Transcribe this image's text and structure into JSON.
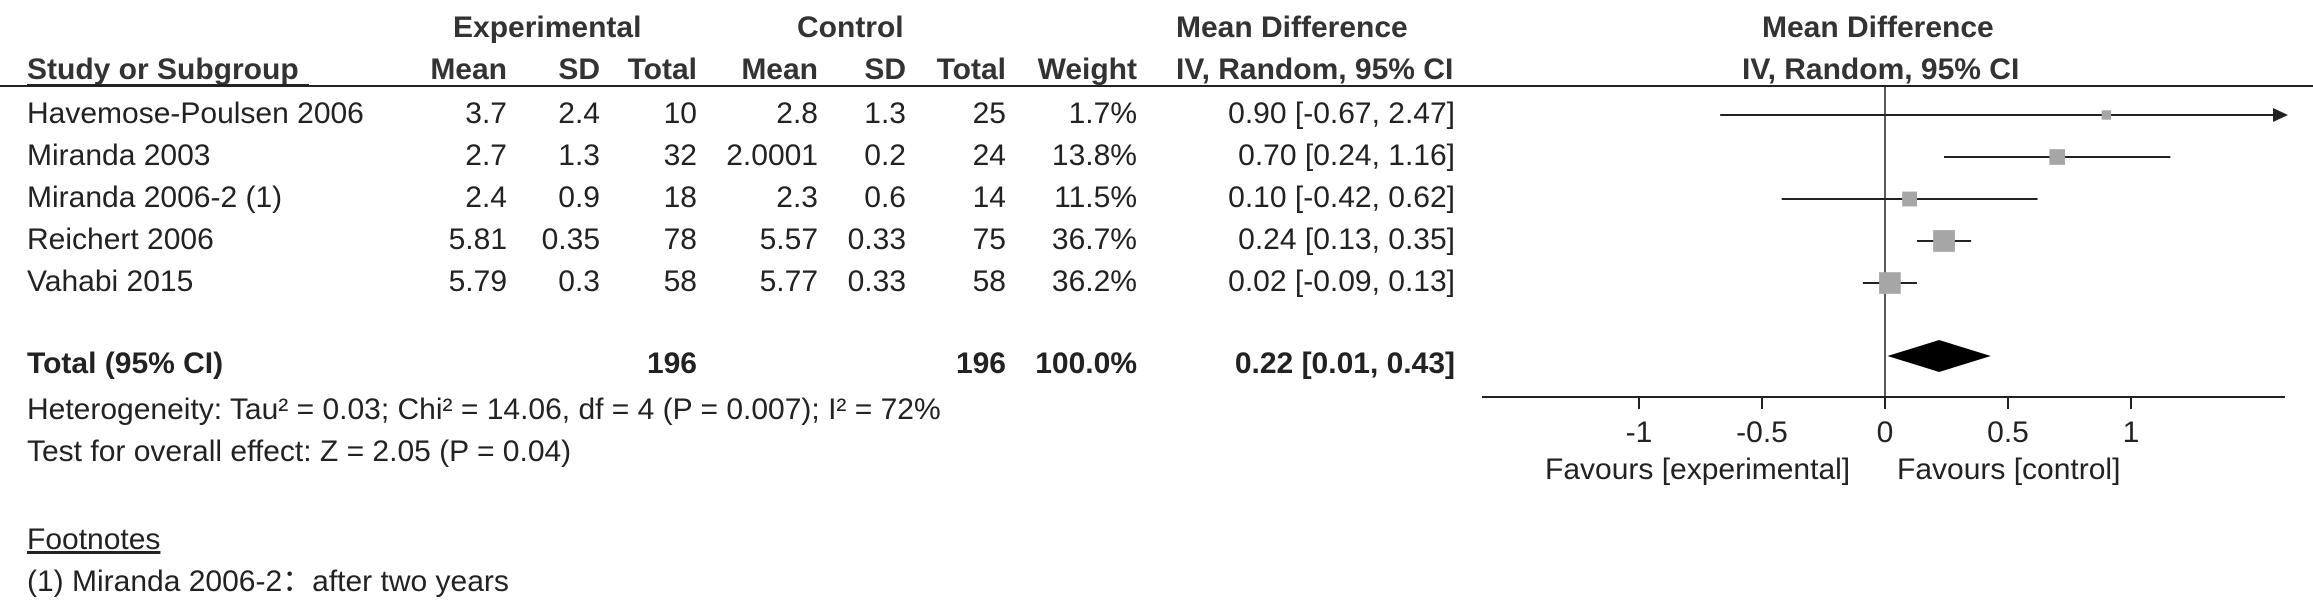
{
  "header": {
    "group_experimental": "Experimental",
    "group_control": "Control",
    "md_title": "Mean Difference",
    "md_subtitle": "IV, Random, 95% CI",
    "plot_title": "Mean Difference",
    "plot_subtitle": "IV, Random, 95% CI",
    "columns": {
      "study": "Study or Subgroup",
      "exp_mean": "Mean",
      "exp_sd": "SD",
      "exp_total": "Total",
      "ctl_mean": "Mean",
      "ctl_sd": "SD",
      "ctl_total": "Total",
      "weight": "Weight"
    }
  },
  "studies": [
    {
      "name": "Havemose-Poulsen 2006",
      "exp_mean": "3.7",
      "exp_sd": "2.4",
      "exp_total": "10",
      "ctl_mean": "2.8",
      "ctl_sd": "1.3",
      "ctl_total": "25",
      "weight": "1.7%",
      "ci_text": "0.90 [-0.67, 2.47]"
    },
    {
      "name": "Miranda 2003",
      "exp_mean": "2.7",
      "exp_sd": "1.3",
      "exp_total": "32",
      "ctl_mean": "2.0001",
      "ctl_sd": "0.2",
      "ctl_total": "24",
      "weight": "13.8%",
      "ci_text": "0.70 [0.24, 1.16]"
    },
    {
      "name": "Miranda 2006-2 (1)",
      "exp_mean": "2.4",
      "exp_sd": "0.9",
      "exp_total": "18",
      "ctl_mean": "2.3",
      "ctl_sd": "0.6",
      "ctl_total": "14",
      "weight": "11.5%",
      "ci_text": "0.10 [-0.42, 0.62]"
    },
    {
      "name": "Reichert 2006",
      "exp_mean": "5.81",
      "exp_sd": "0.35",
      "exp_total": "78",
      "ctl_mean": "5.57",
      "ctl_sd": "0.33",
      "ctl_total": "75",
      "weight": "36.7%",
      "ci_text": "0.24 [0.13, 0.35]"
    },
    {
      "name": "Vahabi 2015",
      "exp_mean": "5.79",
      "exp_sd": "0.3",
      "exp_total": "58",
      "ctl_mean": "5.77",
      "ctl_sd": "0.33",
      "ctl_total": "58",
      "weight": "36.2%",
      "ci_text": "0.02 [-0.09, 0.13]"
    }
  ],
  "total": {
    "label": "Total (95% CI)",
    "exp_total": "196",
    "ctl_total": "196",
    "weight": "100.0%",
    "ci_text": "0.22 [0.01, 0.43]"
  },
  "heterogeneity": "Heterogeneity: Tau² = 0.03; Chi² = 14.06, df = 4 (P = 0.007); I² = 72%",
  "overall_effect": "Test for overall effect: Z = 2.05 (P = 0.04)",
  "footnotes": {
    "title": "Footnotes",
    "items": [
      "(1) Miranda 2006-2：after two years"
    ]
  },
  "axis_labels": {
    "favours_left": "Favours [experimental]",
    "favours_right": "Favours [control]"
  },
  "chart_data": {
    "type": "forest",
    "xlim": [
      -1.6,
      1.6
    ],
    "ticks": [
      -1,
      -0.5,
      0,
      0.5,
      1
    ],
    "tick_labels": [
      "-1",
      "-0.5",
      "0",
      "0.5",
      "1"
    ],
    "null_line": 0,
    "points": [
      {
        "study": "Havemose-Poulsen 2006",
        "md": 0.9,
        "lo": -0.67,
        "hi": 2.47,
        "weight": 1.7
      },
      {
        "study": "Miranda 2003",
        "md": 0.7,
        "lo": 0.24,
        "hi": 1.16,
        "weight": 13.8
      },
      {
        "study": "Miranda 2006-2 (1)",
        "md": 0.1,
        "lo": -0.42,
        "hi": 0.62,
        "weight": 11.5
      },
      {
        "study": "Reichert 2006",
        "md": 0.24,
        "lo": 0.13,
        "hi": 0.35,
        "weight": 36.7
      },
      {
        "study": "Vahabi 2015",
        "md": 0.02,
        "lo": -0.09,
        "hi": 0.13,
        "weight": 36.2
      }
    ],
    "pooled": {
      "md": 0.22,
      "lo": 0.01,
      "hi": 0.43
    },
    "colors": {
      "marker": "#a6a6a6",
      "line": "#222222",
      "diamond": "#000000"
    }
  }
}
